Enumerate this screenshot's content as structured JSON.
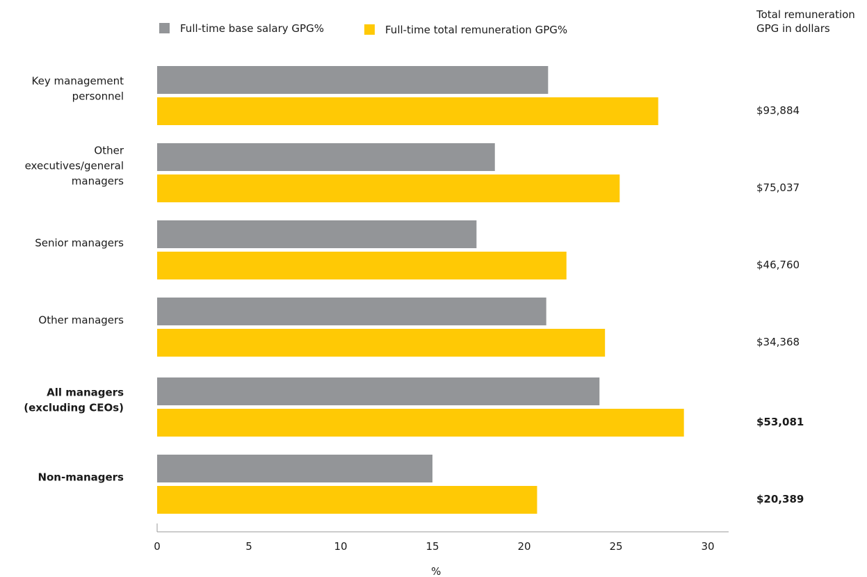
{
  "chart_data": {
    "type": "bar",
    "orientation": "horizontal",
    "xlabel": "%",
    "ylabel": "",
    "xlim": [
      0,
      31
    ],
    "xticks": [
      "0",
      "5",
      "10",
      "15",
      "20",
      "25",
      "30"
    ],
    "legend_position": "top",
    "grid": false,
    "categories": [
      "Key management personnel",
      "Other executives/general managers",
      "Senior managers",
      "Other managers",
      "All managers (excluding CEOs)",
      "Non-managers"
    ],
    "category_lines": [
      [
        "Key management",
        "personnel"
      ],
      [
        "Other",
        "executives/general",
        "managers"
      ],
      [
        "Senior managers"
      ],
      [
        "Other managers"
      ],
      [
        "All managers",
        "(excluding CEOs)"
      ],
      [
        "Non-managers"
      ]
    ],
    "category_bold": [
      false,
      false,
      false,
      false,
      true,
      true
    ],
    "series": [
      {
        "name": "Full-time base salary GPG%",
        "color": "#939598",
        "values": [
          21.3,
          18.4,
          17.4,
          21.2,
          24.1,
          15.0
        ]
      },
      {
        "name": "Full-time total remuneration GPG%",
        "color": "#FFC905",
        "values": [
          27.3,
          25.2,
          22.3,
          24.4,
          28.7,
          20.7
        ]
      }
    ],
    "side_column": {
      "header_lines": [
        "Total remuneration",
        "GPG in dollars"
      ],
      "values": [
        "$93,884",
        "$75,037",
        "$46,760",
        "$34,368",
        "$53,081",
        "$20,389"
      ]
    }
  }
}
